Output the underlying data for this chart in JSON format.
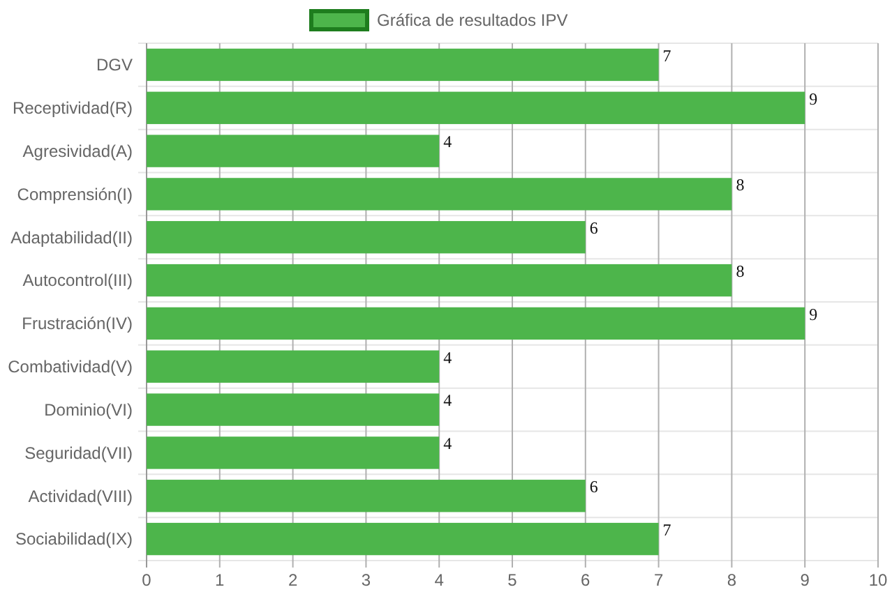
{
  "chart_data": {
    "type": "bar",
    "orientation": "horizontal",
    "categories": [
      "DGV",
      "Receptividad(R)",
      "Agresividad(A)",
      "Comprensión(I)",
      "Adaptabilidad(II)",
      "Autocontrol(III)",
      "Frustración(IV)",
      "Combatividad(V)",
      "Dominio(VI)",
      "Seguridad(VII)",
      "Actividad(VIII)",
      "Sociabilidad(IX)"
    ],
    "series": [
      {
        "name": "Gráfica de resultados IPV",
        "color": "#4db54b",
        "values": [
          7,
          9,
          4,
          8,
          6,
          8,
          9,
          4,
          4,
          4,
          6,
          7
        ]
      }
    ],
    "xlim": [
      0,
      10
    ],
    "xticks": [
      0,
      1,
      2,
      3,
      4,
      5,
      6,
      7,
      8,
      9,
      10
    ],
    "grid": true,
    "legend": "top",
    "data_labels": true
  }
}
